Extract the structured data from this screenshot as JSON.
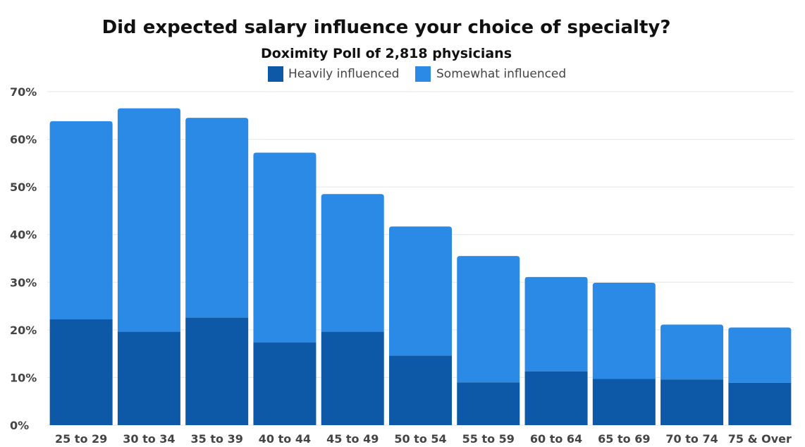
{
  "chart_data": {
    "type": "bar",
    "stacked": true,
    "title": "Did expected salary influence your choice of specialty?",
    "subtitle": "Doximity Poll of 2,818 physicians",
    "categories": [
      "25 to 29",
      "30 to 34",
      "35 to 39",
      "40 to 44",
      "45 to 49",
      "50 to 54",
      "55 to 59",
      "60 to 64",
      "65 to 69",
      "70 to 74",
      "75 & Over"
    ],
    "series": [
      {
        "name": "Heavily influenced",
        "color": "#0d59a8",
        "values": [
          22.2,
          19.6,
          22.6,
          17.4,
          19.6,
          14.6,
          9.0,
          11.3,
          9.7,
          9.6,
          8.9
        ]
      },
      {
        "name": "Somewhat influenced",
        "color": "#2a8ae5",
        "values": [
          41.6,
          46.9,
          41.9,
          39.8,
          28.9,
          27.1,
          26.5,
          19.8,
          20.2,
          11.5,
          11.6
        ]
      }
    ],
    "y_ticks": [
      "0%",
      "10%",
      "20%",
      "30%",
      "40%",
      "50%",
      "60%",
      "70%"
    ],
    "ylim": [
      0,
      70
    ],
    "grid": true,
    "legend_position": "top-center"
  }
}
